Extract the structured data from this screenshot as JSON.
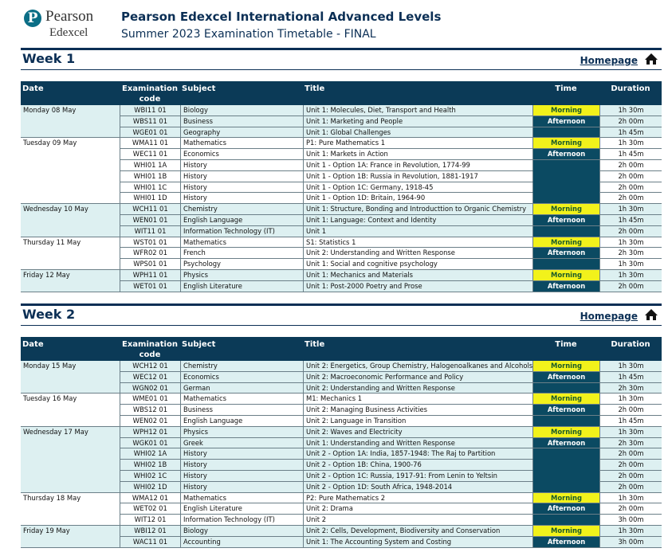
{
  "header": {
    "logo": {
      "brand": "Pearson",
      "sub": "Edexcel"
    },
    "title": "Pearson Edexcel International Advanced Levels",
    "subtitle": "Summer 2023 Examination Timetable - FINAL"
  },
  "columns": [
    "Date",
    "Examination code",
    "Subject",
    "Title",
    "Time",
    "Duration"
  ],
  "weeks": [
    {
      "heading": "Week 1",
      "link": "Homepage",
      "days": [
        {
          "date": "Monday 08 May",
          "sessions": [
            {
              "code": "WBI11 01",
              "subject": "Biology",
              "title": "Unit 1: Molecules, Diet, Transport and Health",
              "time": "Morning",
              "duration": "1h 30m"
            },
            {
              "code": "WBS11 01",
              "subject": "Business",
              "title": "Unit 1: Marketing and People",
              "time": "Afternoon",
              "duration": "2h 00m"
            },
            {
              "code": "WGE01 01",
              "subject": "Geography",
              "title": "Unit 1: Global Challenges",
              "duration": "1h 45m"
            }
          ]
        },
        {
          "date": "Tuesday 09 May",
          "sessions": [
            {
              "code": "WMA11 01",
              "subject": "Mathematics",
              "title": "P1: Pure Mathematics 1",
              "time": "Morning",
              "duration": "1h 30m"
            },
            {
              "code": "WEC11 01",
              "subject": "Economics",
              "title": "Unit 1: Markets in Action",
              "time": "Afternoon",
              "duration": "1h 45m"
            },
            {
              "code": "WHI01 1A",
              "subject": "History",
              "title": "Unit 1 - Option 1A: France in Revolution, 1774-99",
              "duration": "2h 00m"
            },
            {
              "code": "WHI01 1B",
              "subject": "History",
              "title": "Unit 1 - Option 1B: Russia in Revolution, 1881-1917",
              "duration": "2h 00m"
            },
            {
              "code": "WHI01 1C",
              "subject": "History",
              "title": "Unit 1 - Option 1C: Germany, 1918-45",
              "duration": "2h 00m"
            },
            {
              "code": "WHI01 1D",
              "subject": "History",
              "title": "Unit 1 - Option 1D: Britain, 1964-90",
              "duration": "2h 00m"
            }
          ]
        },
        {
          "date": "Wednesday 10 May",
          "sessions": [
            {
              "code": "WCH11 01",
              "subject": "Chemistry",
              "title": "Unit 1: Structure, Bonding and Introducttion to Organic Chemistry",
              "time": "Morning",
              "duration": "1h 30m"
            },
            {
              "code": "WEN01 01",
              "subject": "English Language",
              "title": "Unit 1: Language: Context and Identity",
              "time": "Afternoon",
              "duration": "1h 45m"
            },
            {
              "code": "WIT11 01",
              "subject": "Information Technology (IT)",
              "title": "Unit 1",
              "duration": "2h 00m"
            }
          ]
        },
        {
          "date": "Thursday 11 May",
          "sessions": [
            {
              "code": "WST01 01",
              "subject": "Mathematics",
              "title": "S1: Statistics 1",
              "time": "Morning",
              "duration": "1h 30m"
            },
            {
              "code": "WFR02 01",
              "subject": "French",
              "title": "Unit 2: Understanding and Written Response",
              "time": "Afternoon",
              "duration": "2h 30m"
            },
            {
              "code": "WPS01 01",
              "subject": "Psychology",
              "title": "Unit 1: Social and cognitive psychology",
              "duration": "1h 30m"
            }
          ]
        },
        {
          "date": "Friday 12 May",
          "sessions": [
            {
              "code": "WPH11 01",
              "subject": "Physics",
              "title": "Unit 1: Mechanics and Materials",
              "time": "Morning",
              "duration": "1h 30m"
            },
            {
              "code": "WET01 01",
              "subject": "English Literature",
              "title": "Unit 1: Post-2000 Poetry and Prose",
              "time": "Afternoon",
              "duration": "2h 00m"
            }
          ]
        }
      ]
    },
    {
      "heading": "Week 2",
      "link": "Homepage",
      "days": [
        {
          "date": "Monday 15 May",
          "sessions": [
            {
              "code": "WCH12 01",
              "subject": "Chemistry",
              "title": "Unit 2: Energetics, Group Chemistry, Halogenoalkanes and Alcohols",
              "time": "Morning",
              "duration": "1h 30m"
            },
            {
              "code": "WEC12 01",
              "subject": "Economics",
              "title": "Unit 2: Macroeconomic Performance and Policy",
              "time": "Afternoon",
              "duration": "1h 45m"
            },
            {
              "code": "WGN02 01",
              "subject": "German",
              "title": "Unit 2: Understanding and Written Response",
              "duration": "2h 30m"
            }
          ]
        },
        {
          "date": "Tuesday 16 May",
          "sessions": [
            {
              "code": "WME01 01",
              "subject": "Mathematics",
              "title": "M1: Mechanics 1",
              "time": "Morning",
              "duration": "1h 30m"
            },
            {
              "code": "WBS12 01",
              "subject": "Business",
              "title": "Unit 2: Managing Business Activities",
              "time": "Afternoon",
              "duration": "2h 00m"
            },
            {
              "code": "WEN02 01",
              "subject": "English Language",
              "title": "Unit 2: Language in Transition",
              "duration": "1h 45m"
            }
          ]
        },
        {
          "date": "Wednesday 17 May",
          "sessions": [
            {
              "code": "WPH12 01",
              "subject": "Physics",
              "title": "Unit 2: Waves and Electricity",
              "time": "Morning",
              "duration": "1h 30m"
            },
            {
              "code": "WGK01 01",
              "subject": "Greek",
              "title": "Unit 1: Understanding and Written Response",
              "time": "Afternoon",
              "duration": "2h 30m"
            },
            {
              "code": "WHI02 1A",
              "subject": "History",
              "title": "Unit 2 - Option 1A: India, 1857-1948: The Raj to Partition",
              "duration": "2h 00m"
            },
            {
              "code": "WHI02 1B",
              "subject": "History",
              "title": "Unit 2 - Option 1B: China, 1900-76",
              "duration": "2h 00m"
            },
            {
              "code": "WHI02 1C",
              "subject": "History",
              "title": "Unit 2 - Option 1C: Russia, 1917-91: From Lenin to Yeltsin",
              "duration": "2h 00m"
            },
            {
              "code": "WHI02 1D",
              "subject": "History",
              "title": "Unit 2 - Option 1D: South Africa, 1948-2014",
              "duration": "2h 00m"
            }
          ]
        },
        {
          "date": "Thursday 18 May",
          "sessions": [
            {
              "code": "WMA12 01",
              "subject": "Mathematics",
              "title": "P2: Pure Mathematics 2",
              "time": "Morning",
              "duration": "1h 30m"
            },
            {
              "code": "WET02 01",
              "subject": "English Literature",
              "title": "Unit 2: Drama",
              "time": "Afternoon",
              "duration": "2h 00m"
            },
            {
              "code": "WIT12 01",
              "subject": "Information Technology (IT)",
              "title": "Unit 2",
              "duration": "3h 00m"
            }
          ]
        },
        {
          "date": "Friday 19 May",
          "sessions": [
            {
              "code": "WBI12 01",
              "subject": "Biology",
              "title": "Unit 2: Cells, Development, Biodiversity and Conservation",
              "time": "Morning",
              "duration": "1h 30m"
            },
            {
              "code": "WAC11 01",
              "subject": "Accounting",
              "title": "Unit 1: The Accounting System and Costing",
              "time": "Afternoon",
              "duration": "3h 00m"
            }
          ]
        }
      ]
    }
  ]
}
